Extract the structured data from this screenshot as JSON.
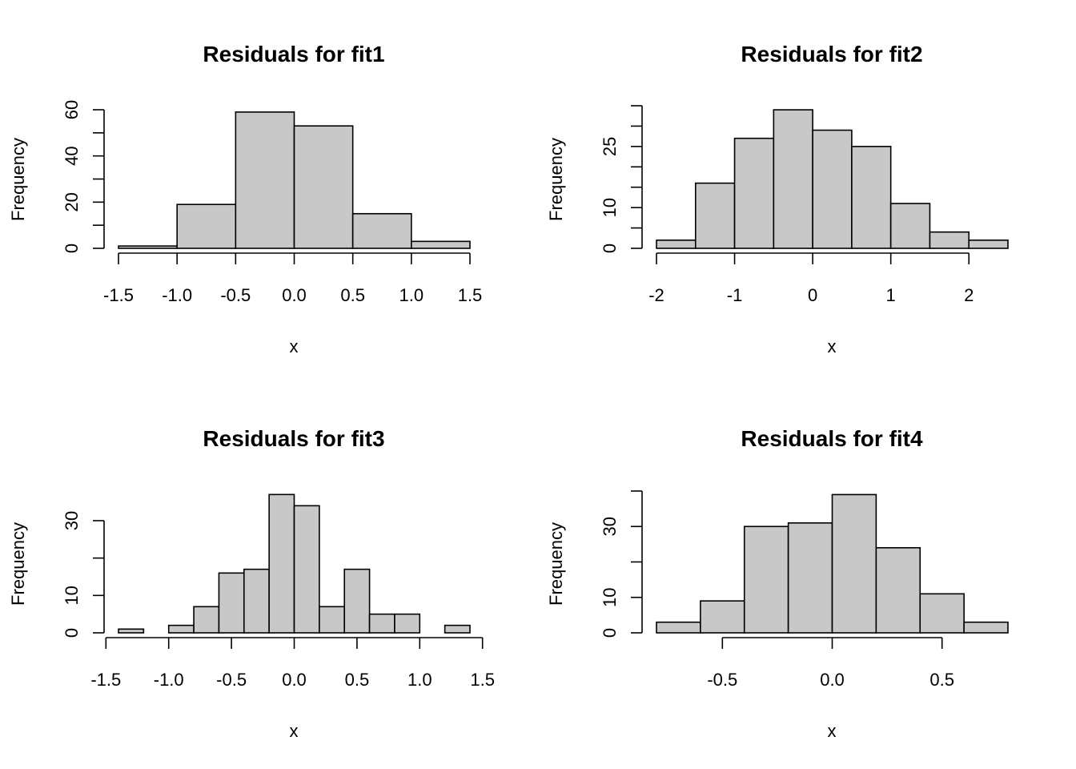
{
  "chart_data": [
    {
      "type": "bar",
      "title": "Residuals for fit1",
      "xlabel": "x",
      "ylabel": "Frequency",
      "bin_edges": [
        -1.5,
        -1.0,
        -0.5,
        0.0,
        0.5,
        1.0,
        1.5
      ],
      "values": [
        1,
        19,
        59,
        53,
        15,
        3
      ],
      "xticks": [
        -1.5,
        -1.0,
        -0.5,
        0.0,
        0.5,
        1.0,
        1.5
      ],
      "xtick_labels": [
        "-1.5",
        "-1.0",
        "-0.5",
        "0.0",
        "0.5",
        "1.0",
        "1.5"
      ],
      "yticks": [
        0,
        10,
        20,
        30,
        40,
        50,
        60
      ],
      "ytick_labels": [
        "0",
        "",
        "20",
        "",
        "40",
        "",
        "60"
      ],
      "xlim": [
        -1.5,
        1.5
      ],
      "ylim": [
        0,
        60
      ]
    },
    {
      "type": "bar",
      "title": "Residuals for fit2",
      "xlabel": "x",
      "ylabel": "Frequency",
      "bin_edges": [
        -2.0,
        -1.5,
        -1.0,
        -0.5,
        0.0,
        0.5,
        1.0,
        1.5,
        2.0,
        2.5
      ],
      "values": [
        2,
        16,
        27,
        34,
        29,
        25,
        11,
        4,
        2
      ],
      "xticks": [
        -2,
        -1,
        0,
        1,
        2
      ],
      "xtick_labels": [
        "-2",
        "-1",
        "0",
        "1",
        "2"
      ],
      "yticks": [
        0,
        5,
        10,
        15,
        20,
        25,
        30,
        35
      ],
      "ytick_labels": [
        "0",
        "",
        "10",
        "",
        "",
        "25",
        "",
        ""
      ],
      "xlim": [
        -2.0,
        2.5
      ],
      "ylim": [
        0,
        35
      ]
    },
    {
      "type": "bar",
      "title": "Residuals for fit3",
      "xlabel": "x",
      "ylabel": "Frequency",
      "bin_edges": [
        -1.4,
        -1.2,
        -1.0,
        -0.8,
        -0.6,
        -0.4,
        -0.2,
        0.0,
        0.2,
        0.4,
        0.6,
        0.8,
        1.0,
        1.2,
        1.4
      ],
      "values": [
        1,
        0,
        2,
        7,
        16,
        17,
        37,
        34,
        7,
        17,
        5,
        5,
        0,
        2
      ],
      "xticks": [
        -1.5,
        -1.0,
        -0.5,
        0.0,
        0.5,
        1.0,
        1.5
      ],
      "xtick_labels": [
        "-1.5",
        "-1.0",
        "-0.5",
        "0.0",
        "0.5",
        "1.0",
        "1.5"
      ],
      "yticks": [
        0,
        10,
        20,
        30
      ],
      "ytick_labels": [
        "0",
        "10",
        "",
        "30"
      ],
      "xlim": [
        -1.5,
        1.5
      ],
      "ylim": [
        0,
        30
      ]
    },
    {
      "type": "bar",
      "title": "Residuals for fit4",
      "xlabel": "x",
      "ylabel": "Frequency",
      "bin_edges": [
        -0.8,
        -0.6,
        -0.4,
        -0.2,
        0.0,
        0.2,
        0.4,
        0.6,
        0.8
      ],
      "values": [
        3,
        9,
        30,
        31,
        39,
        24,
        11,
        3
      ],
      "xticks": [
        -0.5,
        0.0,
        0.5
      ],
      "xtick_labels": [
        "-0.5",
        "0.0",
        "0.5"
      ],
      "yticks": [
        0,
        10,
        20,
        30,
        40
      ],
      "ytick_labels": [
        "0",
        "10",
        "",
        "30",
        ""
      ],
      "xlim": [
        -0.8,
        0.8
      ],
      "ylim": [
        0,
        40
      ]
    }
  ]
}
